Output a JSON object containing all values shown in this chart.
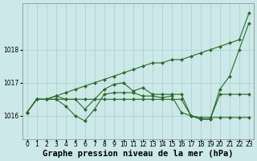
{
  "title": "Graphe pression niveau de la mer (hPa)",
  "background_color": "#cce8e8",
  "plot_bg_color": "#cce8e8",
  "grid_color": "#aacfcf",
  "line_color": "#2d6a2d",
  "xlim": [
    -0.5,
    23.5
  ],
  "ylim": [
    1015.3,
    1019.4
  ],
  "yticks": [
    1016,
    1017,
    1018
  ],
  "xticks": [
    0,
    1,
    2,
    3,
    4,
    5,
    6,
    7,
    8,
    9,
    10,
    11,
    12,
    13,
    14,
    15,
    16,
    17,
    18,
    19,
    20,
    21,
    22,
    23
  ],
  "series": [
    [
      1016.1,
      1016.5,
      1016.5,
      1016.6,
      1016.7,
      1016.8,
      1016.9,
      1017.0,
      1017.1,
      1017.2,
      1017.3,
      1017.4,
      1017.5,
      1017.6,
      1017.6,
      1017.7,
      1017.7,
      1017.8,
      1017.9,
      1018.0,
      1018.1,
      1018.2,
      1018.3,
      1019.1
    ],
    [
      1016.1,
      1016.5,
      1016.5,
      1016.6,
      1016.5,
      1016.5,
      1016.2,
      1016.5,
      1016.8,
      1016.95,
      1017.0,
      1016.75,
      1016.85,
      1016.65,
      1016.65,
      1016.65,
      1016.65,
      1016.0,
      1015.9,
      1015.9,
      1016.8,
      1017.2,
      1018.0,
      1018.8
    ],
    [
      1016.1,
      1016.5,
      1016.5,
      1016.5,
      1016.3,
      1016.0,
      1015.85,
      1016.2,
      1016.65,
      1016.7,
      1016.7,
      1016.7,
      1016.6,
      1016.6,
      1016.55,
      1016.6,
      1016.1,
      1016.0,
      1015.9,
      1015.9,
      1016.65,
      1016.65,
      1016.65,
      1016.65
    ],
    [
      1016.1,
      1016.5,
      1016.5,
      1016.5,
      1016.5,
      1016.5,
      1016.5,
      1016.5,
      1016.5,
      1016.5,
      1016.5,
      1016.5,
      1016.5,
      1016.5,
      1016.5,
      1016.5,
      1016.5,
      1016.0,
      1015.95,
      1015.95,
      1015.95,
      1015.95,
      1015.95,
      1015.95
    ]
  ],
  "marker": "D",
  "markersize": 2.0,
  "linewidth": 0.8,
  "title_fontsize": 7.5,
  "tick_fontsize": 5.5
}
